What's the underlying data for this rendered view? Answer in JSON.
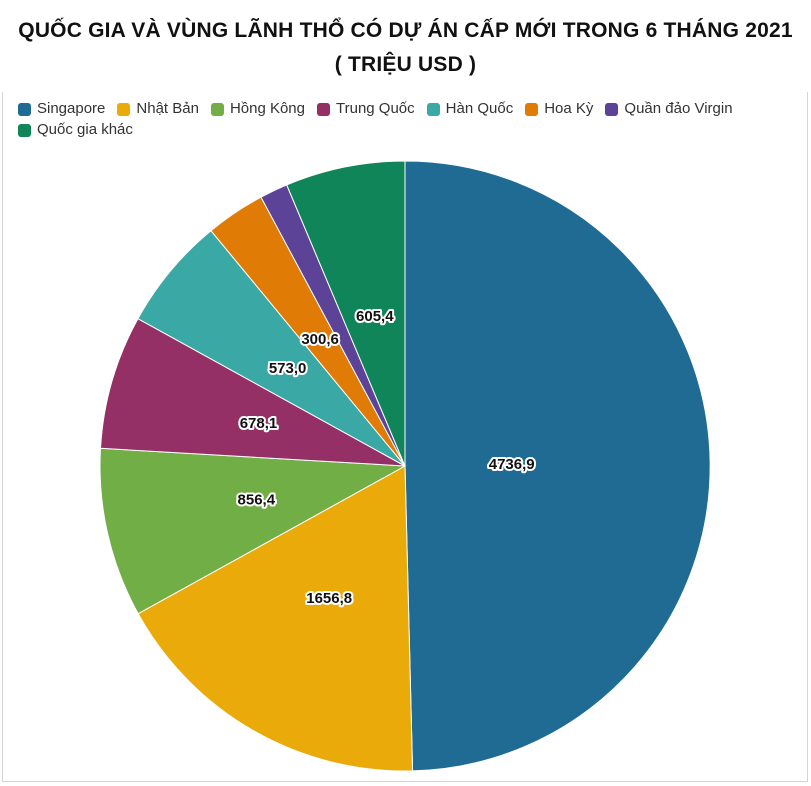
{
  "title_line1": "QUỐC GIA VÀ VÙNG LÃNH THỔ CÓ DỰ ÁN CẤP MỚI TRONG 6 THÁNG 2021",
  "title_line2": "( TRIỆU USD )",
  "chart_data": {
    "type": "pie",
    "title": "QUỐC GIA VÀ VÙNG LÃNH THỔ CÓ DỰ ÁN CẤP MỚI TRONG 6 THÁNG 2021 ( TRIỆU USD )",
    "legend_position": "top-left",
    "start_angle_deg": 0,
    "direction": "clockwise",
    "slices": [
      {
        "name": "Singapore",
        "value": 4736.9,
        "label": "4736,9",
        "color": "#1f6b94"
      },
      {
        "name": "Nhật Bản",
        "value": 1656.8,
        "label": "1656,8",
        "color": "#eaaa0a"
      },
      {
        "name": "Hồng Kông",
        "value": 856.4,
        "label": "856,4",
        "color": "#71ae46"
      },
      {
        "name": "Trung Quốc",
        "value": 678.1,
        "label": "678,1",
        "color": "#953066"
      },
      {
        "name": "Hàn Quốc",
        "value": 573.0,
        "label": "573,0",
        "color": "#3aa8a5"
      },
      {
        "name": "Hoa Kỳ",
        "value": 300.6,
        "label": "300,6",
        "color": "#e07b05"
      },
      {
        "name": "Quần đảo Virgin",
        "value": 142,
        "label": "",
        "color": "#5c4398"
      },
      {
        "name": "Quốc gia khác",
        "value": 605.4,
        "label": "605,4",
        "color": "#10855a"
      }
    ]
  }
}
